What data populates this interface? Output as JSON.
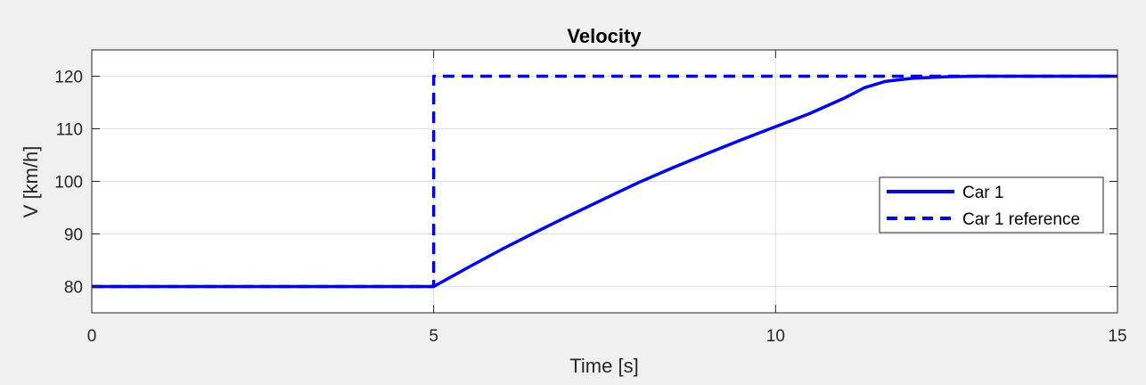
{
  "chart_data": {
    "type": "line",
    "title": "Velocity",
    "xlabel": "Time [s]",
    "ylabel": "V [km/h]",
    "xlim": [
      0,
      15
    ],
    "ylim": [
      75,
      125
    ],
    "xticks": [
      "0",
      "5",
      "10",
      "15"
    ],
    "yticks": [
      "80",
      "90",
      "100",
      "110",
      "120"
    ],
    "grid": true,
    "legend_position": "right",
    "colors": {
      "series": "#0000ff",
      "background": "#f0f0f0",
      "axes": "#ffffff",
      "grid": "#dfdfdf"
    },
    "series": [
      {
        "name": "Car 1",
        "style": "solid",
        "x": [
          0,
          5,
          5.5,
          6,
          6.5,
          7,
          7.5,
          8,
          8.5,
          9,
          9.5,
          10,
          10.5,
          11,
          11.3,
          11.6,
          12,
          12.5,
          13,
          14,
          15
        ],
        "y": [
          80,
          80,
          83.6,
          87.1,
          90.4,
          93.6,
          96.7,
          99.8,
          102.6,
          105.3,
          107.9,
          110.4,
          112.9,
          115.8,
          117.8,
          119.0,
          119.6,
          119.9,
          120,
          120,
          120
        ]
      },
      {
        "name": "Car 1 reference",
        "style": "dashed",
        "x": [
          0,
          5,
          5,
          15
        ],
        "y": [
          80,
          80,
          120,
          120
        ]
      }
    ]
  }
}
